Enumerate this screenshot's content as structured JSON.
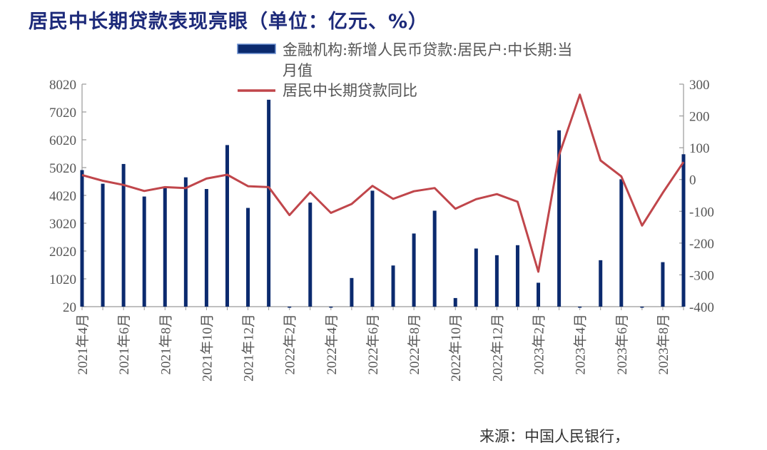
{
  "title": "居民中长期贷款表现亮眼（单位：亿元、%）",
  "source": "来源：中国人民银行，",
  "chart_data": {
    "type": "bar",
    "title": "居民中长期贷款表现亮眼（单位：亿元、%）",
    "x": [
      "2021年4月",
      "2021年5月",
      "2021年6月",
      "2021年7月",
      "2021年8月",
      "2021年9月",
      "2021年10月",
      "2021年11月",
      "2021年12月",
      "2022年1月",
      "2022年2月",
      "2022年3月",
      "2022年4月",
      "2022年5月",
      "2022年6月",
      "2022年7月",
      "2022年8月",
      "2022年9月",
      "2022年10月",
      "2022年11月",
      "2022年12月",
      "2023年1月",
      "2023年2月",
      "2023年3月",
      "2023年4月",
      "2023年5月",
      "2023年6月",
      "2023年7月",
      "2023年8月",
      "2023年9月"
    ],
    "tick_labels": [
      "2021年4月",
      "2021年6月",
      "2021年8月",
      "2021年10月",
      "2021年12月",
      "2022年2月",
      "2022年4月",
      "2022年6月",
      "2022年8月",
      "2022年10月",
      "2022年12月",
      "2023年2月",
      "2023年4月",
      "2023年6月",
      "2023年8月"
    ],
    "y_left_ticks": [
      "20",
      "1020",
      "2020",
      "3020",
      "4020",
      "5020",
      "6020",
      "7020",
      "8020"
    ],
    "y_right_ticks": [
      "300",
      "200",
      "100",
      "0",
      "-100",
      "-200",
      "-300",
      "-400"
    ],
    "ylim_left": [
      20,
      8020
    ],
    "ylim_right": [
      -400,
      300
    ],
    "legend_position": "top",
    "series": [
      {
        "name": "金融机构:新增人民币贷款:居民户:中长期:当月值",
        "type": "bar",
        "axis": "left",
        "color": "#0b2a6e",
        "values": [
          4930,
          4440,
          5150,
          3980,
          4280,
          4670,
          4250,
          5830,
          3570,
          7460,
          20,
          3760,
          20,
          1050,
          4190,
          1500,
          2650,
          3470,
          330,
          2110,
          1870,
          2230,
          880,
          6360,
          20,
          1690,
          4600,
          20,
          1620,
          5500
        ]
      },
      {
        "name": "居民中长期贷款同比",
        "type": "line",
        "axis": "right",
        "color": "#c0464b",
        "values": [
          14,
          -4,
          -17,
          -36,
          -24,
          -27,
          3,
          15,
          -21,
          -24,
          -112,
          -40,
          -105,
          -77,
          -20,
          -61,
          -37,
          -27,
          -92,
          -62,
          -46,
          -70,
          -290,
          77,
          267,
          60,
          10,
          -145,
          -42,
          55
        ]
      }
    ]
  }
}
